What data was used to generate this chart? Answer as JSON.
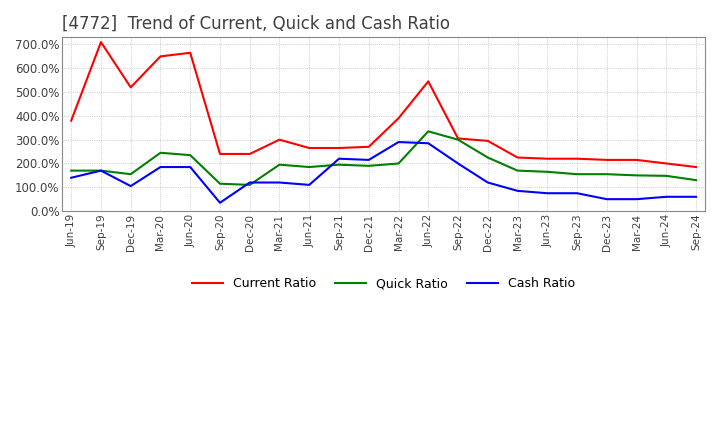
{
  "title": "[4772]  Trend of Current, Quick and Cash Ratio",
  "labels": [
    "Jun-19",
    "Sep-19",
    "Dec-19",
    "Mar-20",
    "Jun-20",
    "Sep-20",
    "Dec-20",
    "Mar-21",
    "Jun-21",
    "Sep-21",
    "Dec-21",
    "Mar-22",
    "Jun-22",
    "Sep-22",
    "Dec-22",
    "Mar-23",
    "Jun-23",
    "Sep-23",
    "Dec-23",
    "Mar-24",
    "Jun-24",
    "Sep-24"
  ],
  "current_ratio": [
    380,
    710,
    520,
    650,
    665,
    240,
    240,
    300,
    265,
    265,
    270,
    390,
    545,
    305,
    295,
    225,
    220,
    220,
    215,
    215,
    200,
    185
  ],
  "quick_ratio": [
    170,
    170,
    155,
    245,
    235,
    115,
    110,
    195,
    185,
    195,
    190,
    200,
    335,
    300,
    225,
    170,
    165,
    155,
    155,
    150,
    148,
    130
  ],
  "cash_ratio": [
    140,
    170,
    105,
    185,
    185,
    35,
    120,
    120,
    110,
    220,
    215,
    290,
    285,
    200,
    120,
    85,
    75,
    75,
    50,
    50,
    60,
    60
  ],
  "current_color": "#ff0000",
  "quick_color": "#008000",
  "cash_color": "#0000ff",
  "ylim": [
    0,
    730
  ],
  "yticks": [
    0,
    100,
    200,
    300,
    400,
    500,
    600,
    700
  ],
  "bg_color": "#ffffff",
  "grid_color": "#aaaaaa",
  "title_color": "#404040",
  "title_fontsize": 12,
  "line_width": 1.5
}
